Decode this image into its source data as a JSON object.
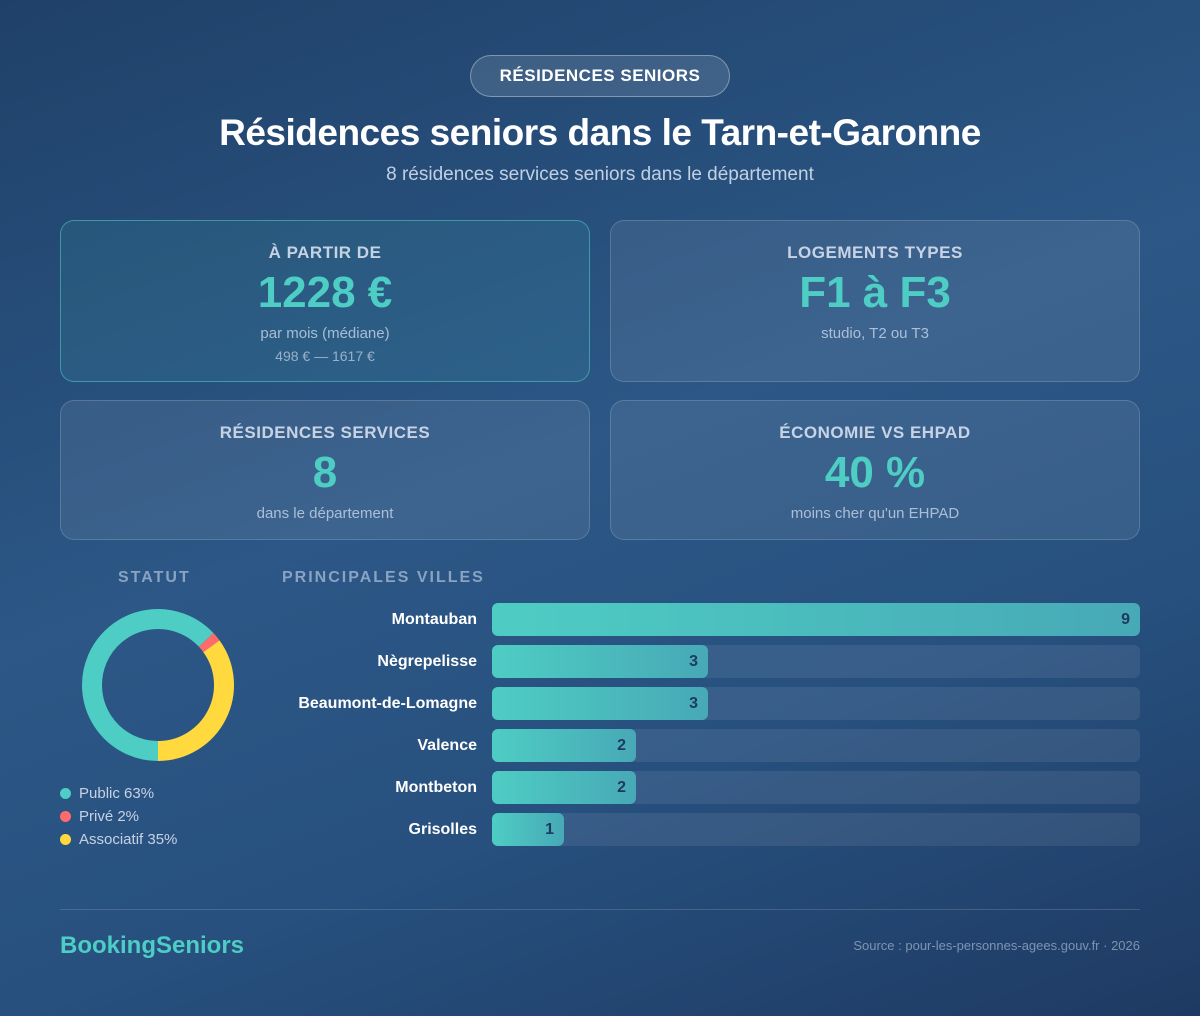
{
  "badge": "RÉSIDENCES SENIORS",
  "title": "Résidences seniors dans le Tarn-et-Garonne",
  "subtitle": "8 résidences services seniors dans le département",
  "cards": [
    {
      "label": "À PARTIR DE",
      "value": "1228 €",
      "sub": "par mois (médiane)",
      "sub2": "498 € — 1617 €"
    },
    {
      "label": "LOGEMENTS TYPES",
      "value": "F1 à F3",
      "sub": "studio, T2 ou T3"
    },
    {
      "label": "RÉSIDENCES SERVICES",
      "value": "8",
      "sub": "dans le département"
    },
    {
      "label": "ÉCONOMIE VS EHPAD",
      "value": "40 %",
      "sub": "moins cher qu'un EHPAD"
    }
  ],
  "sections": {
    "statut": "STATUT",
    "villes": "PRINCIPALES VILLES"
  },
  "colors": {
    "public": "#4ecdc4",
    "prive": "#ff6b6b",
    "associatif": "#ffd93d",
    "accent": "#4ecdc4"
  },
  "chart_data": [
    {
      "type": "pie",
      "title": "STATUT",
      "categories": [
        "Public",
        "Privé",
        "Associatif"
      ],
      "values": [
        63,
        2,
        35
      ],
      "legend": [
        "Public 63%",
        "Privé 2%",
        "Associatif 35%"
      ],
      "legend_position": "bottom"
    },
    {
      "type": "bar",
      "orientation": "horizontal",
      "title": "PRINCIPALES VILLES",
      "categories": [
        "Montauban",
        "Nègrepelisse",
        "Beaumont-de-Lomagne",
        "Valence",
        "Montbeton",
        "Grisolles"
      ],
      "values": [
        9,
        3,
        3,
        2,
        2,
        1
      ],
      "xlim": [
        0,
        9
      ]
    }
  ],
  "footer": {
    "brand": "BookingSeniors",
    "source": "Source : pour-les-personnes-agees.gouv.fr · 2026"
  }
}
